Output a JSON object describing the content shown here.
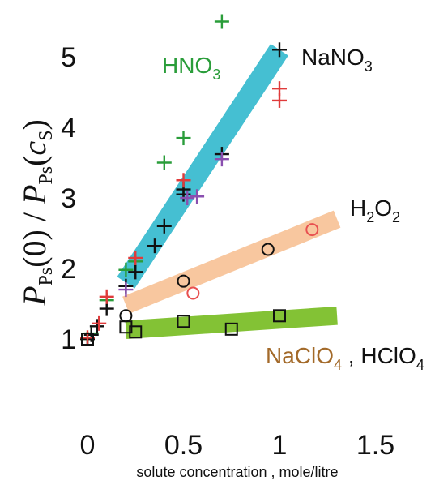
{
  "chart_data": {
    "type": "scatter",
    "xlabel": "solute concentration ,  mole/litre",
    "ylabel": {
      "lead": "P",
      "sub1": "Ps",
      "mid": "(0) / ",
      "lead2": "P",
      "sub2": "Ps",
      "paren_open": "(",
      "c": "c",
      "sub3": "S",
      "paren_close": ")"
    },
    "xlim": [
      -0.05,
      1.6
    ],
    "ylim": [
      0.1,
      5.5
    ],
    "xticks": [
      0,
      0.5,
      1,
      1.5
    ],
    "xtick_labels": [
      "0",
      "0.5",
      "1",
      "1.5"
    ],
    "yticks": [
      1,
      2,
      3,
      4,
      5
    ],
    "ytick_labels": [
      "1",
      "2",
      "3",
      "4",
      "5"
    ],
    "grid": false,
    "colors": {
      "hno3": "#2a9d3a",
      "nano3": "#111111",
      "red": "#e03b3b",
      "purple": "#8a4fb0",
      "band_cyan": "#3bbcd0",
      "band_orange": "#f8c49a",
      "band_green": "#7cbf2a",
      "h2o2_circle_red": "#e85050",
      "label_hno3": "#2a9d3a",
      "label_naclo4": "#a36a2a"
    },
    "bands": [
      {
        "name": "NaNO3 / HNO3",
        "color": "#3bbcd0",
        "x": [
          0.2,
          1.0
        ],
        "y": [
          1.8,
          5.1
        ],
        "width": 0.3
      },
      {
        "name": "H2O2",
        "color": "#f8c49a",
        "x": [
          0.2,
          1.3
        ],
        "y": [
          1.48,
          2.7
        ],
        "width": 0.26
      },
      {
        "name": "NaClO4, HClO4",
        "color": "#7cbf2a",
        "x": [
          0.2,
          1.3
        ],
        "y": [
          1.13,
          1.33
        ],
        "width": 0.26
      }
    ],
    "series": [
      {
        "marker": "plus",
        "color": "#2a9d3a",
        "points": [
          [
            0.0,
            1.0
          ],
          [
            0.02,
            1.08
          ],
          [
            0.1,
            1.55
          ],
          [
            0.2,
            1.98
          ],
          [
            0.25,
            2.1
          ],
          [
            0.4,
            3.5
          ],
          [
            0.5,
            3.85
          ],
          [
            0.7,
            5.5
          ]
        ]
      },
      {
        "marker": "plus",
        "color": "#111111",
        "points": [
          [
            0.0,
            1.0
          ],
          [
            0.02,
            1.06
          ],
          [
            0.05,
            1.18
          ],
          [
            0.1,
            1.43
          ],
          [
            0.2,
            1.75
          ],
          [
            0.25,
            1.95
          ],
          [
            0.35,
            2.32
          ],
          [
            0.4,
            2.6
          ],
          [
            0.5,
            3.05
          ],
          [
            0.5,
            3.12
          ],
          [
            0.7,
            3.62
          ],
          [
            1.0,
            5.1
          ]
        ]
      },
      {
        "marker": "plus",
        "color": "#e03b3b",
        "points": [
          [
            0.0,
            1.02
          ],
          [
            0.06,
            1.22
          ],
          [
            0.1,
            1.6
          ],
          [
            0.25,
            2.15
          ],
          [
            0.5,
            3.25
          ],
          [
            1.0,
            4.55
          ],
          [
            1.0,
            4.38
          ]
        ]
      },
      {
        "marker": "plus",
        "color": "#8a4fb0",
        "points": [
          [
            0.2,
            1.7
          ],
          [
            0.52,
            3.0
          ],
          [
            0.57,
            3.02
          ],
          [
            0.7,
            3.55
          ]
        ]
      },
      {
        "marker": "circle",
        "color": "#111111",
        "points": [
          [
            0.2,
            1.33
          ],
          [
            0.5,
            1.82
          ],
          [
            0.94,
            2.27
          ]
        ]
      },
      {
        "marker": "circle",
        "color": "#e85050",
        "points": [
          [
            0.55,
            1.65
          ],
          [
            1.17,
            2.55
          ]
        ]
      },
      {
        "marker": "square",
        "color": "#111111",
        "points": [
          [
            0.0,
            1.0
          ],
          [
            0.2,
            1.17
          ],
          [
            0.25,
            1.1
          ],
          [
            0.5,
            1.25
          ],
          [
            0.75,
            1.14
          ],
          [
            1.0,
            1.33
          ]
        ]
      }
    ],
    "labels": [
      {
        "id": "hno3",
        "main": "HNO",
        "sub": "3",
        "color": "#2a9d3a"
      },
      {
        "id": "nano3",
        "main": "NaNO",
        "sub": "3",
        "color": "#111111"
      },
      {
        "id": "h2o2",
        "main": "H",
        "sub": "2",
        "main2": "O",
        "sub2": "2",
        "color": "#111111"
      },
      {
        "id": "naclo4",
        "main": "NaClO",
        "sub": "4",
        "tail": " , HClO",
        "sub2": "4",
        "color": "#a36a2a",
        "tail_color": "#111111"
      }
    ]
  }
}
